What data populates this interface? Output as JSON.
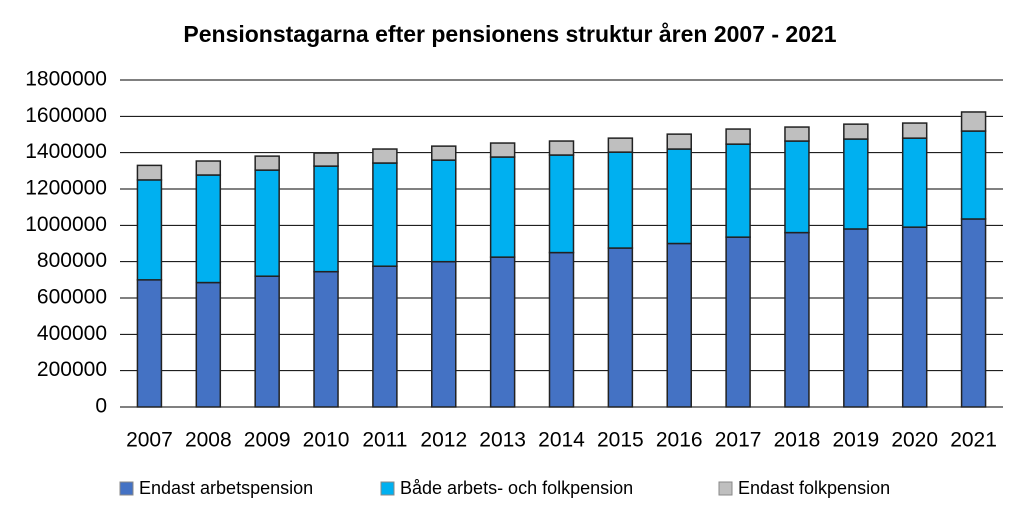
{
  "chart_data": {
    "type": "stacked-bar",
    "title": "Pensionstagarna efter pensionens struktur åren 2007 - 2021",
    "categories": [
      "2007",
      "2008",
      "2009",
      "2010",
      "2011",
      "2012",
      "2013",
      "2014",
      "2015",
      "2016",
      "2017",
      "2018",
      "2019",
      "2020",
      "2021"
    ],
    "series": [
      {
        "name": "Endast arbetspension",
        "color": "#4472c4",
        "values": [
          700000,
          685000,
          720000,
          745000,
          775000,
          800000,
          825000,
          850000,
          875000,
          900000,
          935000,
          960000,
          980000,
          990000,
          1035000
        ]
      },
      {
        "name": "Både arbets- och folkpension",
        "color": "#00b0f0",
        "values": [
          550000,
          592000,
          584000,
          581000,
          568000,
          559000,
          551000,
          537000,
          528000,
          520000,
          512000,
          504000,
          495000,
          490000,
          484000
        ]
      },
      {
        "name": "Endast folkpension",
        "color": "#bfbfbf",
        "values": [
          80000,
          77000,
          77000,
          72000,
          77000,
          77000,
          77000,
          77000,
          77000,
          82000,
          83000,
          77000,
          82000,
          83000,
          105000
        ]
      }
    ],
    "ylim": [
      0,
      1800000
    ],
    "yticks": [
      0,
      200000,
      400000,
      600000,
      800000,
      1000000,
      1200000,
      1400000,
      1600000,
      1800000
    ],
    "grid": true
  }
}
